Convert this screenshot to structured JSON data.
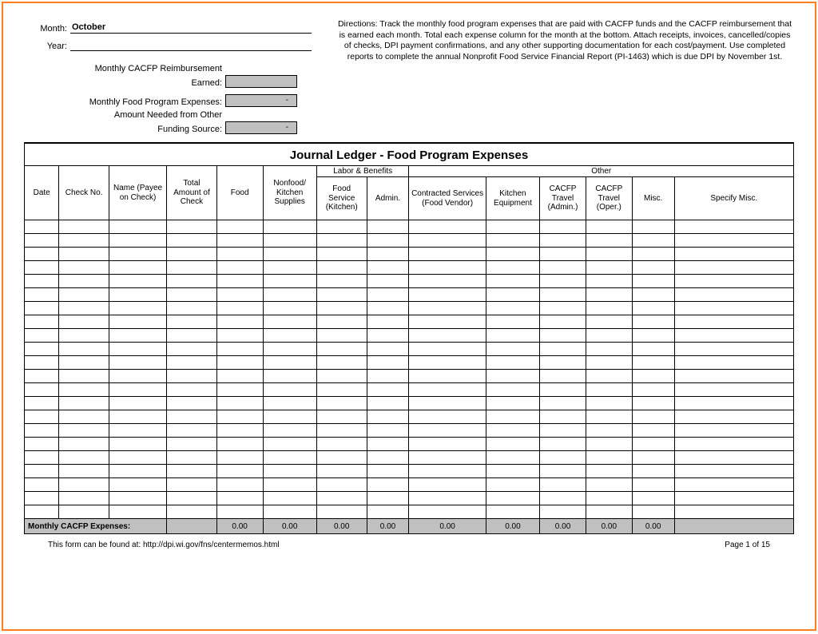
{
  "header": {
    "month_label": "Month:",
    "month_value": "October",
    "year_label": "Year:",
    "reimbursement_label_1": "Monthly CACFP Reimbursement",
    "reimbursement_label_2": "Earned:",
    "expenses_label": "Monthly Food Program Expenses:",
    "expenses_value": "-",
    "amount_needed_label_1": "Amount Needed from Other",
    "amount_needed_label_2": "Funding Source:",
    "amount_needed_value": "-",
    "directions": "Directions: Track the monthly food program expenses that are paid with CACFP funds and the CACFP reimbursement that is earned each month. Total each expense column for the month at the bottom. Attach receipts, invoices, cancelled/copies of checks, DPI payment confirmations, and any other supporting documentation for each cost/payment. Use completed reports to complete  the annual Nonprofit Food Service Financial Report (PI-1463) which is due DPI by November 1st."
  },
  "table": {
    "title": "Journal Ledger - Food Program Expenses",
    "group_labor": "Labor & Benefits",
    "group_other": "Other",
    "columns": {
      "date": "Date",
      "check_no": "Check No.",
      "name": "Name (Payee on Check)",
      "total": "Total Amount of Check",
      "food": "Food",
      "nonfood": "Nonfood/ Kitchen Supplies",
      "food_service": "Food Service (Kitchen)",
      "admin": "Admin.",
      "contracted": "Contracted Services (Food Vendor)",
      "kitchen_equip": "Kitchen Equipment",
      "travel_admin": "CACFP Travel (Admin.)",
      "travel_oper": "CACFP Travel (Oper.)",
      "misc": "Misc.",
      "specify": "Specify Misc."
    },
    "widths_pct": [
      4.5,
      6.5,
      7.5,
      6.5,
      6,
      7,
      6.5,
      5.5,
      10,
      7,
      6,
      6,
      5.5,
      15.5
    ],
    "empty_rows": 22,
    "totals": {
      "label": "Monthly CACFP Expenses:",
      "values": [
        "",
        "0.00",
        "0.00",
        "0.00",
        "0.00",
        "0.00",
        "0.00",
        "0.00",
        "0.00",
        "0.00",
        ""
      ]
    }
  },
  "footer": {
    "source": "This form can be found at: http://dpi.wi.gov/fns/centermemos.html",
    "page": "Page 1 of 15"
  },
  "colors": {
    "border_outer": "#ff7f1f",
    "grey_fill": "#c0c0c0",
    "line": "#000000",
    "background": "#ffffff"
  }
}
